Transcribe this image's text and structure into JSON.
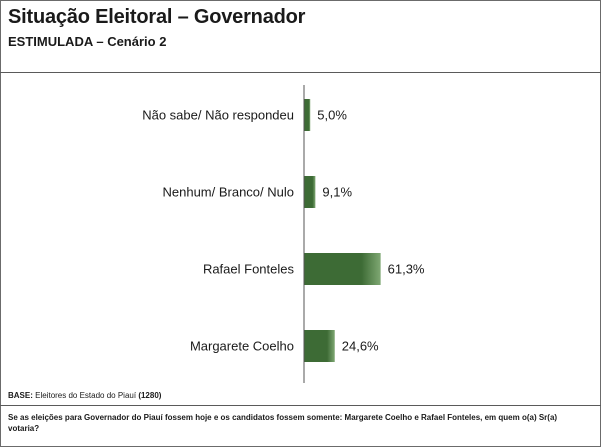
{
  "header": {
    "title": "Situação Eleitoral – Governador",
    "subtitle": "ESTIMULADA – Cenário 2"
  },
  "chart_data": {
    "type": "bar",
    "orientation": "horizontal",
    "categories": [
      "Não sabe/ Não respondeu",
      "Nenhum/ Branco/ Nulo",
      "Rafael Fonteles",
      "Margarete Coelho"
    ],
    "values": [
      5.0,
      9.1,
      61.3,
      24.6
    ],
    "value_labels": [
      "5,0%",
      "9,1%",
      "61,3%",
      "24,6%"
    ],
    "unit": "%",
    "xlim": [
      0,
      100
    ],
    "grid": false,
    "legend": "none",
    "colors": {
      "bar_dark": "#3d6b35",
      "bar_light": "#7fa873",
      "axis": "#555555"
    }
  },
  "footer": {
    "base_label": "BASE:",
    "base_text": "Eleitores do Estado do Piauí",
    "base_count": "(1280)",
    "question": "Se as eleições para Governador do Piauí fossem hoje e os candidatos fossem somente: Margarete Coelho e Rafael Fonteles, em quem o(a) Sr(a) votaria?"
  }
}
